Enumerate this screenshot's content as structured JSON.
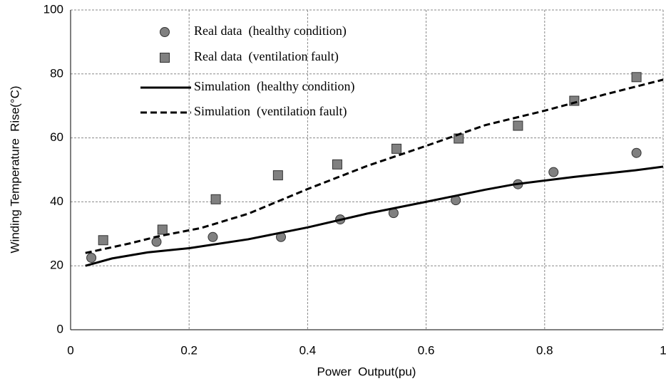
{
  "chart_data": {
    "type": "line",
    "xlabel": "Power  Output(pu)",
    "ylabel": "Winding Temperature  Rise(°C)",
    "xlim": [
      0,
      1
    ],
    "xticks": [
      0,
      0.2,
      0.4,
      0.6,
      0.8,
      1
    ],
    "ylim": [
      0,
      100
    ],
    "yticks": [
      0,
      20,
      40,
      60,
      80,
      100
    ],
    "grid": true,
    "legend": "upper left",
    "series": [
      {
        "name": "Real data  (healthy condition)",
        "color": "#808080",
        "marker": "circle",
        "line": "none",
        "x": [
          0.035,
          0.145,
          0.24,
          0.355,
          0.455,
          0.545,
          0.65,
          0.755,
          0.815,
          0.955
        ],
        "values": [
          22.5,
          27.5,
          29,
          29,
          34.5,
          36.5,
          40.5,
          45.5,
          49.3,
          55.3
        ]
      },
      {
        "name": "Real data  (ventilation fault)",
        "color": "#808080",
        "marker": "square",
        "line": "none",
        "x": [
          0.055,
          0.155,
          0.245,
          0.35,
          0.45,
          0.55,
          0.655,
          0.755,
          0.85,
          0.955
        ],
        "values": [
          28,
          31.3,
          40.8,
          48.3,
          51.7,
          56.6,
          59.8,
          63.8,
          71.6,
          79
        ]
      },
      {
        "name": "Simulation  (healthy condition)",
        "color": "#000000",
        "marker": "none",
        "line": "solid",
        "x": [
          0.025,
          0.07,
          0.13,
          0.2,
          0.3,
          0.4,
          0.5,
          0.6,
          0.7,
          0.75,
          0.85,
          0.95,
          1
        ],
        "values": [
          20,
          22.3,
          24.2,
          25.5,
          28.3,
          32,
          36.3,
          40,
          43.8,
          45.5,
          47.8,
          49.8,
          51
        ]
      },
      {
        "name": "Simulation  (ventilation fault)",
        "color": "#000000",
        "marker": "none",
        "line": "dashed",
        "x": [
          0.025,
          0.1,
          0.15,
          0.22,
          0.3,
          0.4,
          0.5,
          0.6,
          0.7,
          0.8,
          0.9,
          1
        ],
        "values": [
          24,
          27,
          29.3,
          31.8,
          36.3,
          44,
          51.2,
          57.5,
          64,
          68.5,
          73.5,
          78.2
        ]
      }
    ]
  }
}
